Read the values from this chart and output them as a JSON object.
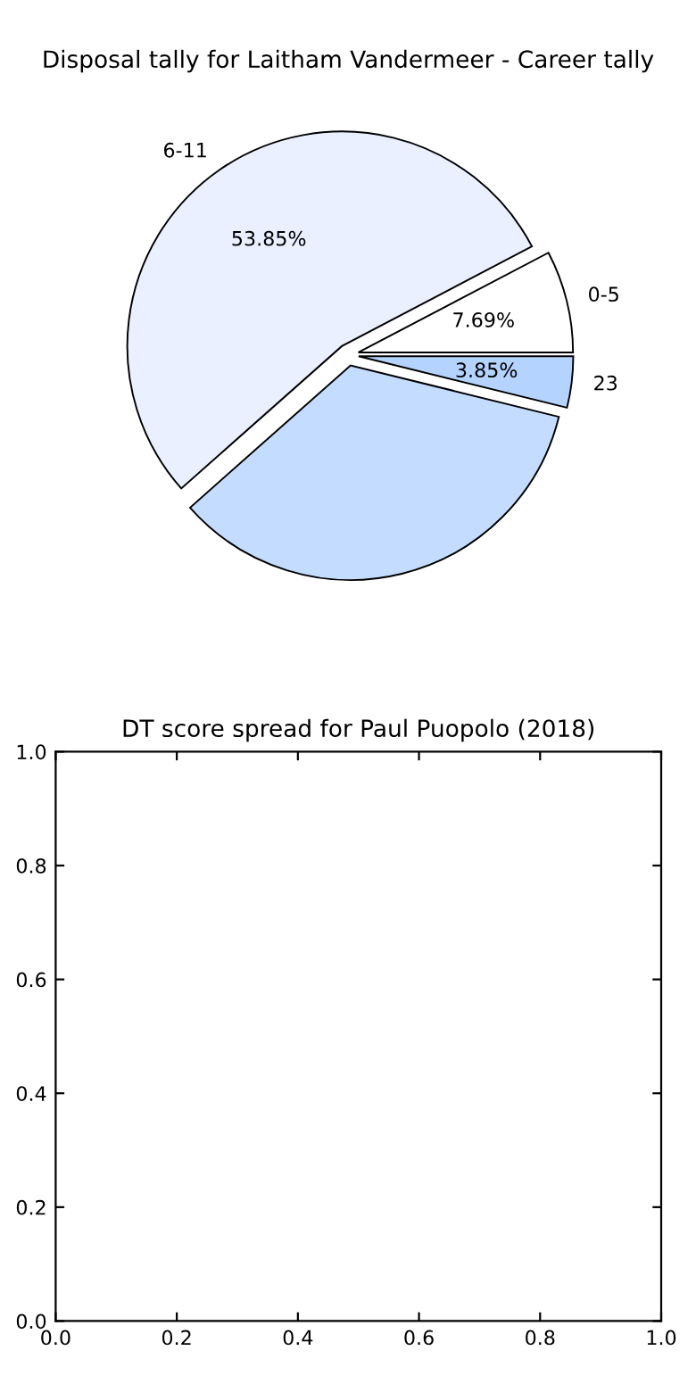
{
  "chart_data": [
    {
      "type": "pie",
      "title": "Disposal tally for Laitham Vandermeer - Career tally",
      "categories": [
        "0-5",
        "6-11",
        null,
        "23"
      ],
      "values": [
        7.69,
        53.85,
        34.61,
        3.85
      ],
      "colors": [
        "#ffffff",
        "#eaf0ff",
        "#c4dcff",
        "#b4d3ff"
      ],
      "value_labels": [
        "7.69%",
        "53.85%",
        null,
        "3.85%"
      ]
    },
    {
      "type": "scatter",
      "title": "DT score spread for Paul Puopolo (2018)",
      "xlim": [
        0,
        1
      ],
      "ylim": [
        0,
        1
      ],
      "xticks": [
        {
          "value": 0,
          "label": "0.0"
        },
        {
          "value": 0.2,
          "label": "0.2"
        },
        {
          "value": 0.4,
          "label": "0.4"
        },
        {
          "value": 0.6,
          "label": "0.6"
        },
        {
          "value": 0.8,
          "label": "0.8"
        },
        {
          "value": 1,
          "label": "1.0"
        }
      ],
      "yticks": [
        {
          "value": 0,
          "label": "0.0"
        },
        {
          "value": 0.2,
          "label": "0.2"
        },
        {
          "value": 0.4,
          "label": "0.4"
        },
        {
          "value": 0.6,
          "label": "0.6"
        },
        {
          "value": 0.8,
          "label": "0.8"
        },
        {
          "value": 1,
          "label": "1.0"
        }
      ]
    }
  ]
}
